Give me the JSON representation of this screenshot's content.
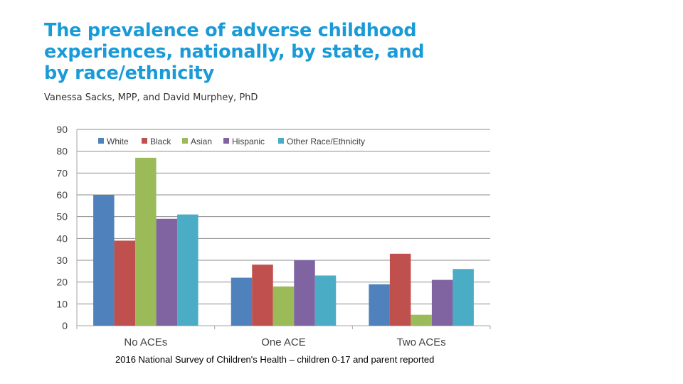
{
  "title_lines": [
    "The prevalence of adverse childhood",
    "experiences, nationally, by state, and",
    "by race/ethnicity"
  ],
  "authors": "Vanessa Sacks, MPP, and David Murphey, PhD",
  "source_note": "2016 National Survey of Children's Health – children 0-17 and parent reported",
  "title_color": "#1a9bd7",
  "chart_data": {
    "type": "bar",
    "categories": [
      "No ACEs",
      "One ACE",
      "Two ACEs"
    ],
    "series": [
      {
        "name": "White",
        "color": "#4f81bd",
        "values": [
          60,
          22,
          19
        ]
      },
      {
        "name": "Black",
        "color": "#c0504d",
        "values": [
          39,
          28,
          33
        ]
      },
      {
        "name": "Asian",
        "color": "#9bbb59",
        "values": [
          77,
          18,
          5
        ]
      },
      {
        "name": "Hispanic",
        "color": "#8064a2",
        "values": [
          49,
          30,
          21
        ]
      },
      {
        "name": "Other Race/Ethnicity",
        "color": "#4bacc6",
        "values": [
          51,
          23,
          26
        ]
      }
    ],
    "ylim": [
      0,
      90
    ],
    "yticks": [
      "0",
      "10",
      "20",
      "30",
      "40",
      "50",
      "60",
      "70",
      "80",
      "90"
    ],
    "grid": true,
    "legend": "top-left"
  }
}
